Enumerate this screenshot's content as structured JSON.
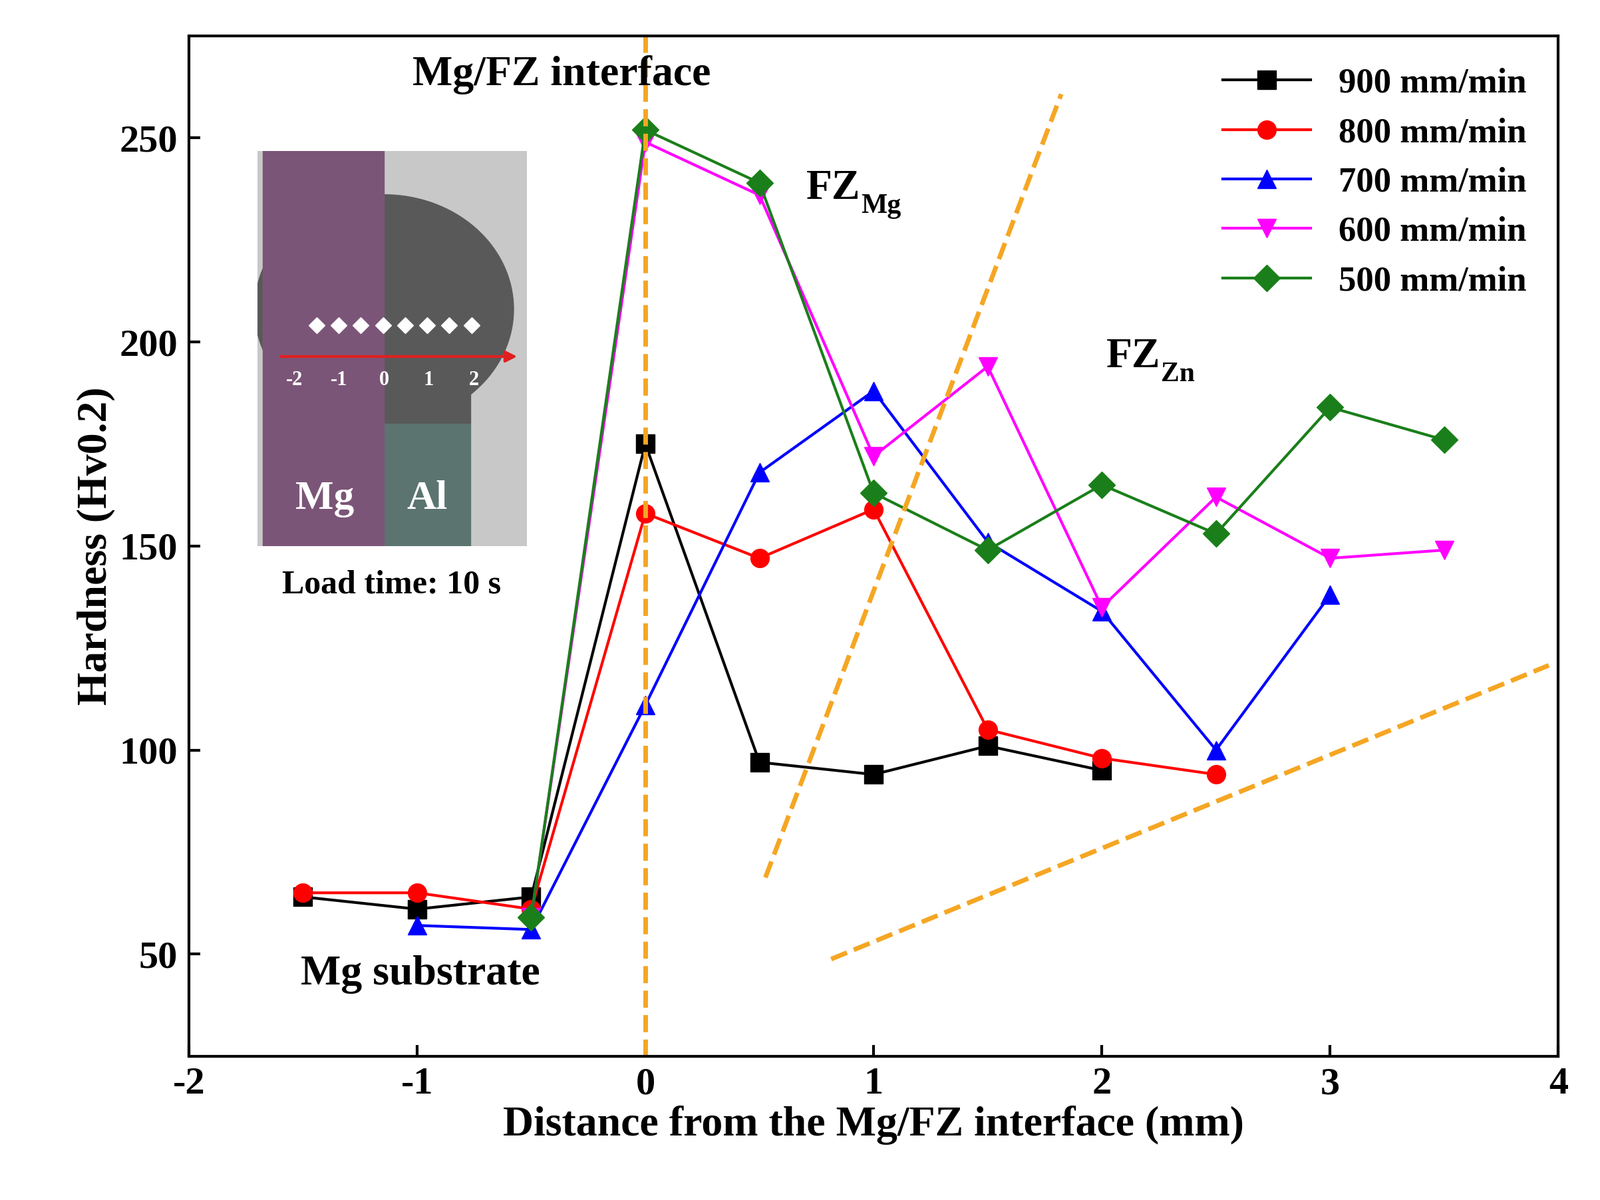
{
  "chart_data": {
    "type": "line",
    "x_label": "Distance from the Mg/FZ interface (mm)",
    "y_label": "Hardness (Hv0.2)",
    "x": [
      -1.5,
      -1,
      -0.5,
      0,
      0.5,
      1,
      1.5,
      2,
      2.5,
      3,
      3.5
    ],
    "series": [
      {
        "name": "900 mm/min",
        "color": "#000000",
        "marker": "square",
        "values": [
          64,
          61,
          64,
          175,
          97,
          94,
          101,
          95,
          null,
          null,
          null
        ]
      },
      {
        "name": "800 mm/min",
        "color": "#ff0000",
        "marker": "circle",
        "values": [
          65,
          65,
          61,
          158,
          147,
          159,
          105,
          98,
          94,
          null,
          null
        ]
      },
      {
        "name": "700 mm/min",
        "color": "#0000ff",
        "marker": "triangle_up",
        "values": [
          null,
          57,
          56,
          111,
          168,
          188,
          151,
          134,
          100,
          138,
          null
        ]
      },
      {
        "name": "600 mm/min",
        "color": "#ff00ff",
        "marker": "triangle_down",
        "values": [
          null,
          null,
          59,
          249,
          236,
          172,
          194,
          135,
          162,
          147,
          149
        ]
      },
      {
        "name": "500 mm/min",
        "color": "#1a7f1a",
        "marker": "diamond",
        "values": [
          null,
          null,
          59,
          252,
          239,
          163,
          149,
          165,
          153,
          184,
          176
        ]
      }
    ],
    "xlim": [
      -2,
      4
    ],
    "xticks": [
      -2,
      -1,
      0,
      1,
      2,
      3,
      4
    ],
    "ylim": [
      25,
      275
    ],
    "yticks": [
      50,
      100,
      150,
      200,
      250
    ],
    "legend": "upper right",
    "annotations": [
      {
        "text": "Mg/FZ interface"
      },
      {
        "text": "FZ",
        "subscript": "Mg"
      },
      {
        "text": "FZ",
        "subscript": "Zn"
      },
      {
        "text": "Mg substrate"
      }
    ],
    "inset": {
      "materials": [
        "Mg",
        "Al"
      ],
      "tick_labels": [
        "-2",
        "-1",
        "0",
        "1",
        "2"
      ],
      "note": "Load time: 10 s"
    }
  }
}
